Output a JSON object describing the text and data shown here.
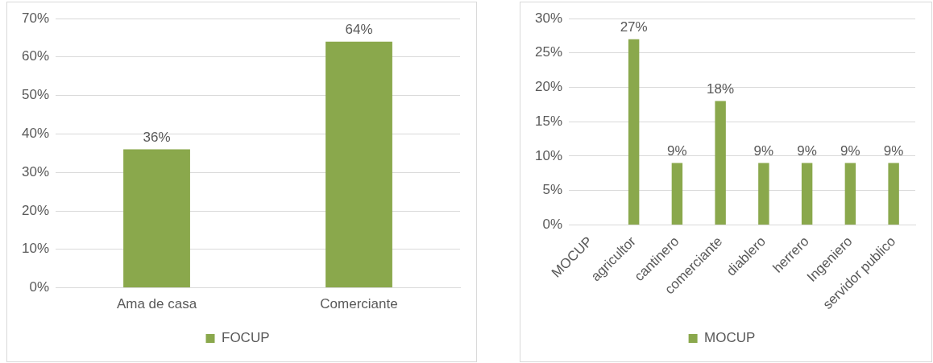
{
  "chart_data": [
    {
      "type": "bar",
      "categories": [
        "Ama de casa",
        "Comerciante"
      ],
      "series": [
        {
          "name": "FOCUP",
          "color": "#8aa84c",
          "values": [
            36,
            64
          ],
          "value_labels": [
            "36%",
            "64%"
          ]
        }
      ],
      "ylim": [
        0,
        70
      ],
      "yticks": [
        {
          "value": 0,
          "label": "0%"
        },
        {
          "value": 10,
          "label": "10%"
        },
        {
          "value": 20,
          "label": "20%"
        },
        {
          "value": 30,
          "label": "30%"
        },
        {
          "value": 40,
          "label": "40%"
        },
        {
          "value": 50,
          "label": "50%"
        },
        {
          "value": 60,
          "label": "60%"
        },
        {
          "value": 70,
          "label": "70%"
        }
      ],
      "grid": "y",
      "legend": "bottom"
    },
    {
      "type": "bar",
      "categories": [
        "MOCUP",
        "agricultor",
        "cantinero",
        "comerciante",
        "diablero",
        "herrero",
        "Ingeniero",
        "servidor publico"
      ],
      "series": [
        {
          "name": "MOCUP",
          "color": "#8aa84c",
          "values": [
            null,
            27,
            9,
            18,
            9,
            9,
            9,
            9
          ],
          "value_labels": [
            null,
            "27%",
            "9%",
            "18%",
            "9%",
            "9%",
            "9%",
            "9%"
          ]
        }
      ],
      "ylim": [
        0,
        30
      ],
      "yticks": [
        {
          "value": 0,
          "label": "0%"
        },
        {
          "value": 5,
          "label": "5%"
        },
        {
          "value": 10,
          "label": "10%"
        },
        {
          "value": 15,
          "label": "15%"
        },
        {
          "value": 20,
          "label": "20%"
        },
        {
          "value": 25,
          "label": "25%"
        },
        {
          "value": 30,
          "label": "30%"
        }
      ],
      "grid": "y",
      "legend": "bottom"
    }
  ]
}
